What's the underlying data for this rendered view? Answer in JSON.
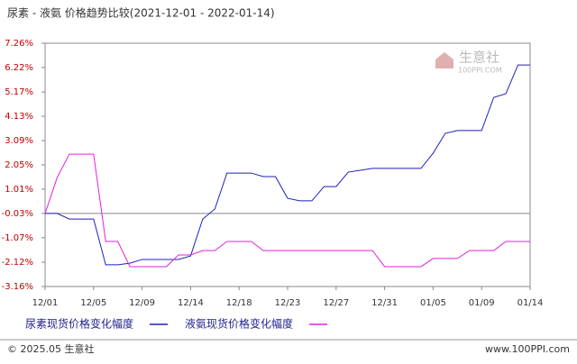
{
  "chart_data": {
    "type": "line",
    "title": "尿素 - 液氨 价格趋势比较(2021-12-01 - 2022-01-14)",
    "categories": [
      "12/01",
      null,
      null,
      null,
      "12/05",
      null,
      null,
      null,
      "12/09",
      null,
      null,
      null,
      "12/14",
      null,
      null,
      null,
      "12/18",
      null,
      null,
      null,
      "12/23",
      null,
      null,
      null,
      "12/27",
      null,
      null,
      null,
      "12/31",
      null,
      null,
      null,
      "01/05",
      null,
      null,
      null,
      "01/09",
      null,
      null,
      null,
      "01/14"
    ],
    "series": [
      {
        "name": "尿素现货价格变化幅度",
        "color": "#1f1fbf",
        "values": [
          -0.03,
          -0.03,
          -0.27,
          -0.27,
          -0.27,
          -2.23,
          -2.23,
          -2.16,
          -2.0,
          -2.0,
          -2.0,
          -2.0,
          -1.85,
          -0.27,
          0.16,
          1.7,
          1.7,
          1.7,
          1.55,
          1.55,
          0.62,
          0.51,
          0.51,
          1.12,
          1.12,
          1.74,
          1.82,
          1.9,
          1.9,
          1.9,
          1.9,
          1.9,
          2.55,
          3.4,
          3.52,
          3.52,
          3.52,
          4.94,
          5.1,
          6.33,
          6.33
        ]
      },
      {
        "name": "液氨现货价格变化幅度",
        "color": "#e020e0",
        "values": [
          -0.03,
          1.51,
          2.51,
          2.51,
          2.51,
          -1.23,
          -1.23,
          -2.31,
          -2.31,
          -2.31,
          -2.31,
          -1.81,
          -1.81,
          -1.62,
          -1.62,
          -1.23,
          -1.23,
          -1.23,
          -1.62,
          -1.62,
          -1.62,
          -1.62,
          -1.62,
          -1.62,
          -1.62,
          -1.62,
          -1.62,
          -1.62,
          -2.31,
          -2.31,
          -2.31,
          -2.31,
          -1.96,
          -1.96,
          -1.96,
          -1.62,
          -1.62,
          -1.62,
          -1.23,
          -1.23,
          -1.23
        ]
      }
    ],
    "ylim": [
      -3.16,
      7.26
    ],
    "yticks": [
      {
        "value": 7.26,
        "label": "7.26%"
      },
      {
        "value": 6.22,
        "label": "6.22%"
      },
      {
        "value": 5.17,
        "label": "5.17%"
      },
      {
        "value": 4.13,
        "label": "4.13%"
      },
      {
        "value": 3.09,
        "label": "3.09%"
      },
      {
        "value": 2.05,
        "label": "2.05%"
      },
      {
        "value": 1.01,
        "label": "1.01%"
      },
      {
        "value": -0.03,
        "label": "-0.03%"
      },
      {
        "value": -1.07,
        "label": "-1.07%"
      },
      {
        "value": -2.12,
        "label": "-2.12%"
      },
      {
        "value": -3.16,
        "label": "-3.16%"
      }
    ],
    "watermark": "生意社",
    "watermark_url": "100PPI.COM",
    "footer_left": "© 2025.05 生意社",
    "footer_right": "www.100PPI.com"
  }
}
